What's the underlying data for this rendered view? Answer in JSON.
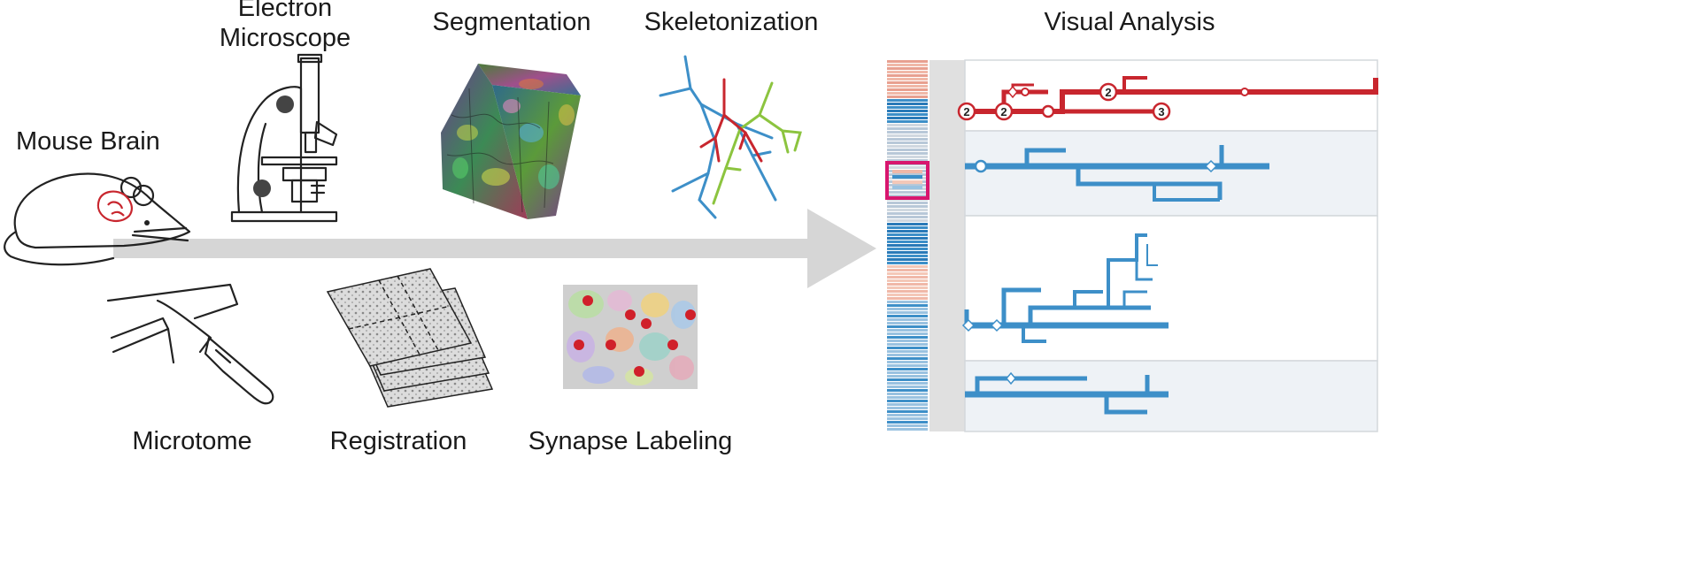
{
  "labels": {
    "mouse_brain": "Mouse Brain",
    "electron_microscope_line1": "Electron",
    "electron_microscope_line2": "Microscope",
    "segmentation": "Segmentation",
    "skeletonization": "Skeletonization",
    "visual_analysis": "Visual Analysis",
    "microtome": "Microtome",
    "registration": "Registration",
    "synapse_labeling": "Synapse Labeling"
  },
  "branch_badges": [
    "2",
    "2",
    "2",
    "3"
  ],
  "colors": {
    "arrow": "#d6d6d6",
    "red": "#c8262e",
    "blue": "#3d8fc8",
    "green": "#8cc43f",
    "magenta": "#d8166e",
    "panel": "#eef2f6"
  }
}
